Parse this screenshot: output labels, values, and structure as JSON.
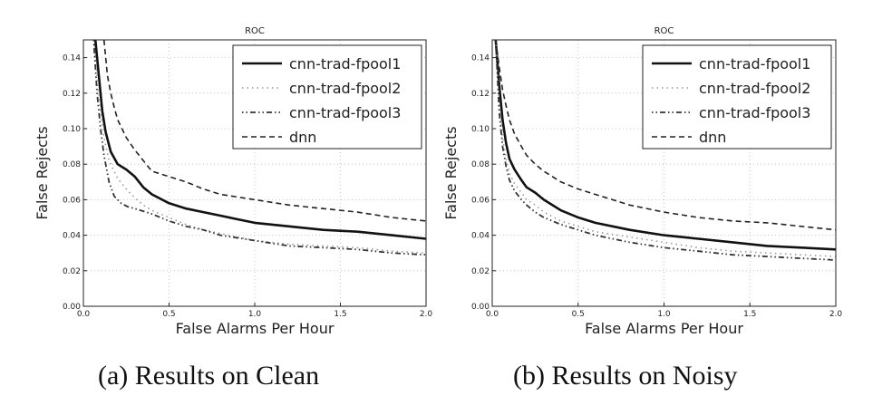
{
  "captions": {
    "a": "(a) Results on Clean",
    "b": "(b) Results on Noisy"
  },
  "chart_data": [
    {
      "type": "line",
      "title": "ROC",
      "xlabel": "False Alarms Per Hour",
      "ylabel": "False Rejects",
      "xlim": [
        0.0,
        2.0
      ],
      "ylim": [
        0.0,
        0.15
      ],
      "xticks": [
        0.0,
        0.5,
        1.0,
        1.5,
        2.0
      ],
      "xtick_labels": [
        "0.0",
        "0.5",
        "1.0",
        "1.5",
        "2.0"
      ],
      "yticks": [
        0.0,
        0.02,
        0.04,
        0.06,
        0.08,
        0.1,
        0.12,
        0.14
      ],
      "ytick_labels": [
        "0.00",
        "0.02",
        "0.04",
        "0.06",
        "0.08",
        "0.10",
        "0.12",
        "0.14"
      ],
      "grid": true,
      "legend": "top-right",
      "series": [
        {
          "name": "cnn-trad-fpool1",
          "style": "solid",
          "x": [
            0.07,
            0.09,
            0.11,
            0.13,
            0.16,
            0.2,
            0.25,
            0.3,
            0.35,
            0.4,
            0.5,
            0.6,
            0.7,
            0.8,
            0.9,
            1.0,
            1.2,
            1.4,
            1.6,
            1.8,
            2.0
          ],
          "y": [
            0.15,
            0.13,
            0.11,
            0.098,
            0.087,
            0.08,
            0.077,
            0.073,
            0.067,
            0.063,
            0.058,
            0.055,
            0.053,
            0.051,
            0.049,
            0.047,
            0.045,
            0.043,
            0.042,
            0.04,
            0.038
          ]
        },
        {
          "name": "cnn-trad-fpool2",
          "style": "plus",
          "x": [
            0.06,
            0.08,
            0.1,
            0.12,
            0.15,
            0.2,
            0.25,
            0.3,
            0.35,
            0.4,
            0.5,
            0.6,
            0.7,
            0.8,
            1.0,
            1.2,
            1.4,
            1.6,
            1.8,
            2.0
          ],
          "y": [
            0.15,
            0.13,
            0.11,
            0.095,
            0.082,
            0.072,
            0.066,
            0.061,
            0.057,
            0.054,
            0.05,
            0.046,
            0.043,
            0.041,
            0.037,
            0.035,
            0.034,
            0.033,
            0.031,
            0.03
          ]
        },
        {
          "name": "cnn-trad-fpool3",
          "style": "dashdot",
          "x": [
            0.06,
            0.08,
            0.1,
            0.12,
            0.15,
            0.18,
            0.22,
            0.26,
            0.3,
            0.4,
            0.5,
            0.6,
            0.7,
            0.8,
            1.0,
            1.2,
            1.4,
            1.6,
            1.8,
            2.0
          ],
          "y": [
            0.15,
            0.12,
            0.1,
            0.085,
            0.07,
            0.062,
            0.058,
            0.056,
            0.055,
            0.052,
            0.048,
            0.045,
            0.043,
            0.04,
            0.037,
            0.034,
            0.033,
            0.032,
            0.03,
            0.029
          ]
        },
        {
          "name": "dnn",
          "style": "dashed",
          "x": [
            0.12,
            0.14,
            0.16,
            0.18,
            0.2,
            0.25,
            0.3,
            0.35,
            0.4,
            0.5,
            0.6,
            0.7,
            0.8,
            1.0,
            1.2,
            1.4,
            1.6,
            1.8,
            2.0
          ],
          "y": [
            0.15,
            0.13,
            0.12,
            0.112,
            0.105,
            0.095,
            0.088,
            0.082,
            0.076,
            0.073,
            0.07,
            0.066,
            0.063,
            0.06,
            0.057,
            0.055,
            0.053,
            0.05,
            0.048
          ]
        }
      ]
    },
    {
      "type": "line",
      "title": "ROC",
      "xlabel": "False Alarms Per Hour",
      "ylabel": "False Rejects",
      "xlim": [
        0.0,
        2.0
      ],
      "ylim": [
        0.0,
        0.15
      ],
      "xticks": [
        0.0,
        0.5,
        1.0,
        1.5,
        2.0
      ],
      "xtick_labels": [
        "0.0",
        "0.5",
        "1.0",
        "1.5",
        "2.0"
      ],
      "yticks": [
        0.0,
        0.02,
        0.04,
        0.06,
        0.08,
        0.1,
        0.12,
        0.14
      ],
      "ytick_labels": [
        "0.00",
        "0.02",
        "0.04",
        "0.06",
        "0.08",
        "0.10",
        "0.12",
        "0.14"
      ],
      "grid": true,
      "legend": "top-right",
      "series": [
        {
          "name": "cnn-trad-fpool1",
          "style": "solid",
          "x": [
            0.02,
            0.04,
            0.06,
            0.08,
            0.1,
            0.13,
            0.17,
            0.2,
            0.25,
            0.3,
            0.4,
            0.5,
            0.6,
            0.8,
            1.0,
            1.2,
            1.4,
            1.6,
            1.8,
            2.0
          ],
          "y": [
            0.15,
            0.125,
            0.105,
            0.092,
            0.083,
            0.077,
            0.071,
            0.067,
            0.064,
            0.06,
            0.054,
            0.05,
            0.047,
            0.043,
            0.04,
            0.038,
            0.036,
            0.034,
            0.033,
            0.032
          ]
        },
        {
          "name": "cnn-trad-fpool2",
          "style": "plus",
          "x": [
            0.02,
            0.04,
            0.06,
            0.08,
            0.1,
            0.13,
            0.17,
            0.2,
            0.25,
            0.3,
            0.4,
            0.5,
            0.6,
            0.8,
            1.0,
            1.2,
            1.4,
            1.6,
            1.8,
            2.0
          ],
          "y": [
            0.15,
            0.115,
            0.095,
            0.083,
            0.075,
            0.069,
            0.064,
            0.06,
            0.057,
            0.053,
            0.048,
            0.045,
            0.042,
            0.039,
            0.036,
            0.033,
            0.031,
            0.03,
            0.029,
            0.028
          ]
        },
        {
          "name": "cnn-trad-fpool3",
          "style": "dashdot",
          "x": [
            0.02,
            0.04,
            0.06,
            0.08,
            0.1,
            0.13,
            0.17,
            0.2,
            0.25,
            0.3,
            0.4,
            0.5,
            0.6,
            0.8,
            1.0,
            1.2,
            1.4,
            1.6,
            1.8,
            2.0
          ],
          "y": [
            0.15,
            0.11,
            0.09,
            0.079,
            0.071,
            0.065,
            0.06,
            0.057,
            0.053,
            0.05,
            0.046,
            0.043,
            0.04,
            0.036,
            0.033,
            0.031,
            0.029,
            0.028,
            0.027,
            0.026
          ]
        },
        {
          "name": "dnn",
          "style": "dashed",
          "x": [
            0.02,
            0.04,
            0.06,
            0.08,
            0.1,
            0.13,
            0.17,
            0.2,
            0.25,
            0.3,
            0.4,
            0.5,
            0.6,
            0.8,
            1.0,
            1.2,
            1.4,
            1.6,
            1.8,
            2.0
          ],
          "y": [
            0.15,
            0.135,
            0.122,
            0.113,
            0.105,
            0.097,
            0.09,
            0.085,
            0.08,
            0.076,
            0.07,
            0.066,
            0.063,
            0.057,
            0.053,
            0.05,
            0.048,
            0.047,
            0.045,
            0.043
          ]
        }
      ]
    }
  ]
}
